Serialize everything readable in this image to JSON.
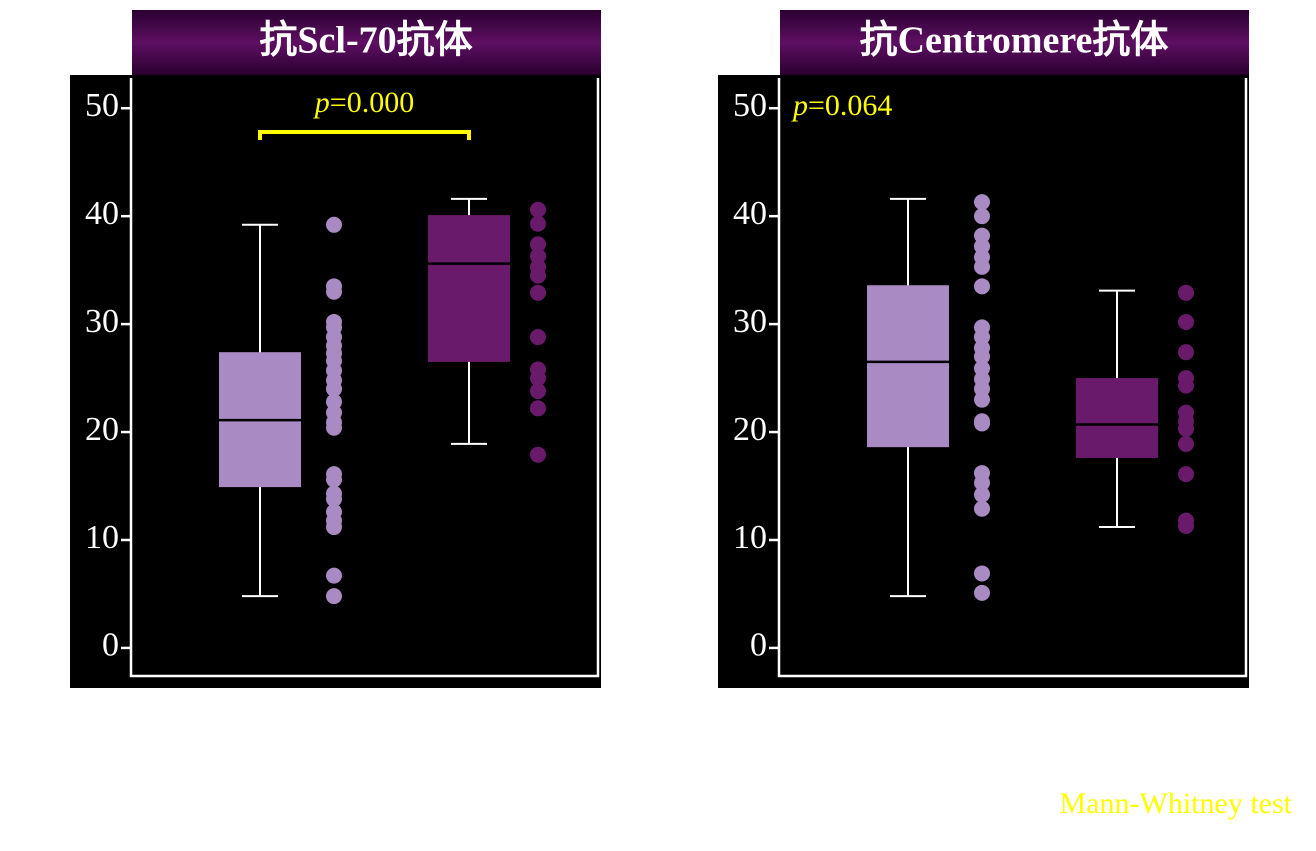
{
  "chart_data": [
    {
      "type": "box",
      "title": "抗Scl-70抗体",
      "annotation": "p=0.000",
      "significance_bracket": true,
      "ylim": [
        -2.6,
        52.8
      ],
      "yticks": [
        0,
        10,
        20,
        30,
        40,
        50
      ],
      "series": [
        {
          "color": "#a98ac3",
          "min": 4.8,
          "q1": 14.9,
          "median": 21.1,
          "q3": 27.4,
          "max": 39.2,
          "points": [
            39.2,
            33.5,
            33.0,
            30.2,
            29.7,
            28.8,
            28.0,
            27.3,
            26.6,
            25.7,
            24.8,
            24.0,
            22.8,
            21.8,
            20.9,
            20.4,
            16.1,
            15.6,
            14.3,
            13.8,
            12.6,
            11.8,
            11.2,
            6.7,
            4.8
          ]
        },
        {
          "color": "#6a1a6a",
          "min": 18.9,
          "q1": 26.5,
          "median": 35.6,
          "q3": 40.1,
          "max": 41.6,
          "points": [
            40.6,
            39.3,
            37.4,
            36.3,
            35.3,
            34.5,
            32.9,
            28.8,
            25.8,
            25.0,
            23.8,
            22.2,
            17.9
          ]
        }
      ]
    },
    {
      "type": "box",
      "title": "抗Centromere抗体",
      "annotation": "p=0.064",
      "significance_bracket": false,
      "ylim": [
        -2.6,
        52.8
      ],
      "yticks": [
        0,
        10,
        20,
        30,
        40,
        50
      ],
      "series": [
        {
          "color": "#a98ac3",
          "min": 4.8,
          "q1": 18.6,
          "median": 26.5,
          "q3": 33.6,
          "max": 41.6,
          "points": [
            41.3,
            40.0,
            38.2,
            37.2,
            36.2,
            35.3,
            33.5,
            29.7,
            28.8,
            27.8,
            27.0,
            25.9,
            24.9,
            24.0,
            23.0,
            21.0,
            20.8,
            16.2,
            15.3,
            14.2,
            12.9,
            6.9,
            5.1
          ]
        },
        {
          "color": "#6a1a6a",
          "min": 11.2,
          "q1": 17.6,
          "median": 20.7,
          "q3": 25.0,
          "max": 33.1,
          "points": [
            32.9,
            30.2,
            27.4,
            25.0,
            24.3,
            21.8,
            21.0,
            20.3,
            18.9,
            16.1,
            11.8,
            11.3
          ]
        }
      ]
    }
  ],
  "footnote": "Mann-Whitney test"
}
